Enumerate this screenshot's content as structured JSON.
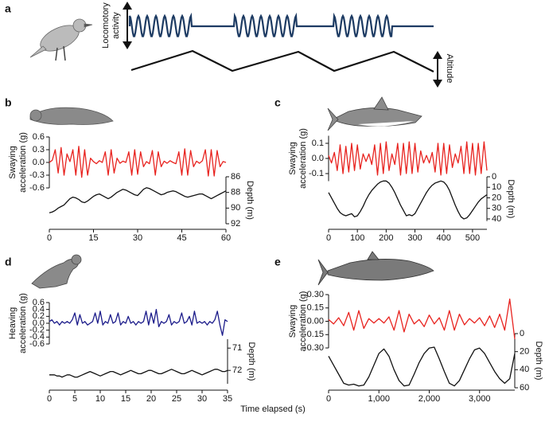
{
  "schematic": {
    "label": "a",
    "activity_label": [
      "Locomotory",
      "activity"
    ],
    "altitude_label": "Altitude"
  },
  "footer": {
    "x_label": "Time elapsed (s)"
  },
  "chart_data": [
    {
      "type": "line",
      "label": "b",
      "y_label": [
        "Swaying",
        "acceleration (g)"
      ],
      "y2_label": "Depth (m)",
      "x": [
        0,
        1,
        2,
        3,
        4,
        5,
        6,
        7,
        8,
        9,
        10,
        11,
        12,
        13,
        14,
        15,
        16,
        17,
        18,
        19,
        20,
        21,
        22,
        23,
        24,
        25,
        26,
        27,
        28,
        29,
        30,
        31,
        32,
        33,
        34,
        35,
        36,
        37,
        38,
        39,
        40,
        41,
        42,
        43,
        44,
        45,
        46,
        47,
        48,
        49,
        50,
        51,
        52,
        53,
        54,
        55,
        56,
        57,
        58,
        59,
        60
      ],
      "xlim": [
        0,
        60
      ],
      "xticks": [
        0,
        15,
        30,
        45,
        60
      ],
      "ylim": [
        -0.6,
        0.6
      ],
      "yticks": [
        0.6,
        0.3,
        {
          "value": 0,
          "label": "0.0"
        },
        -0.3,
        -0.6
      ],
      "y2lim": [
        86,
        92
      ],
      "y2_inverted": true,
      "y2ticks": [
        86,
        88,
        90,
        92
      ],
      "series": [
        {
          "name": "Swaying acceleration",
          "color": "#e8231f",
          "values": [
            0,
            0.05,
            0.3,
            -0.25,
            0.35,
            -0.3,
            0.2,
            0.02,
            0.3,
            -0.3,
            0.38,
            -0.35,
            0.3,
            -0.3,
            0.1,
            0.02,
            -0.03,
            0.04,
            0,
            0.25,
            -0.3,
            0.3,
            -0.25,
            0.1,
            -0.02,
            0.03,
            0,
            0.25,
            -0.3,
            0.3,
            -0.28,
            0.25,
            -0.1,
            0.02,
            -0.03,
            0.28,
            -0.3,
            0.25,
            -0.1,
            0.03,
            -0.02,
            0.04,
            0,
            -0.03,
            0.25,
            -0.3,
            0.32,
            -0.3,
            0.28,
            -0.1,
            0.03,
            -0.02,
            0.04,
            0.3,
            -0.32,
            0.3,
            -0.32,
            0.28,
            -0.1,
            0.02,
            0
          ]
        },
        {
          "name": "Depth",
          "color": "#111111",
          "axis": "y2",
          "values": [
            90.6,
            90.5,
            90.3,
            90.0,
            89.8,
            89.6,
            89.2,
            88.8,
            88.6,
            88.7,
            88.9,
            89.2,
            89.3,
            89.1,
            88.8,
            88.5,
            88.3,
            88.2,
            88.4,
            88.6,
            88.8,
            88.6,
            88.3,
            88.0,
            87.8,
            87.6,
            87.7,
            87.9,
            88.1,
            88.3,
            88.4,
            88.0,
            87.6,
            87.4,
            87.5,
            87.7,
            87.9,
            88.1,
            88.3,
            88.2,
            88.0,
            87.9,
            87.8,
            87.9,
            88.1,
            88.3,
            88.5,
            88.6,
            88.5,
            88.4,
            88.3,
            88.2,
            88.2,
            88.4,
            88.6,
            88.8,
            88.6,
            88.4,
            88.2,
            88.0,
            87.8
          ]
        }
      ]
    },
    {
      "type": "line",
      "label": "c",
      "y_label": [
        "Swaying",
        "acceleration (g)"
      ],
      "y2_label": "Depth (m)",
      "x": [
        0,
        10,
        20,
        30,
        40,
        50,
        60,
        70,
        80,
        90,
        100,
        110,
        120,
        130,
        140,
        150,
        160,
        170,
        180,
        190,
        200,
        210,
        220,
        230,
        240,
        250,
        260,
        270,
        280,
        290,
        300,
        310,
        320,
        330,
        340,
        350,
        360,
        370,
        380,
        390,
        400,
        410,
        420,
        430,
        440,
        450,
        460,
        470,
        480,
        490,
        500,
        510,
        520,
        530,
        540,
        550
      ],
      "xlim": [
        0,
        550
      ],
      "xticks": [
        0,
        100,
        200,
        300,
        400,
        500
      ],
      "ylim": [
        -0.15,
        0.15
      ],
      "yticks": [
        0.1,
        {
          "value": 0,
          "label": "0.0"
        },
        -0.1
      ],
      "y2lim": [
        0,
        42
      ],
      "y2_inverted": true,
      "y2ticks": [
        0,
        10,
        20,
        30,
        40
      ],
      "series": [
        {
          "name": "Swaying acceleration",
          "color": "#e8231f",
          "values": [
            0.02,
            -0.03,
            0.04,
            -0.08,
            0.09,
            -0.1,
            0.08,
            -0.09,
            0.1,
            -0.08,
            0.09,
            -0.07,
            0.03,
            -0.02,
            0.03,
            -0.04,
            0.09,
            -0.11,
            0.1,
            -0.1,
            0.11,
            -0.08,
            0.03,
            -0.04,
            0.1,
            -0.11,
            0.1,
            -0.1,
            0.11,
            -0.1,
            0.1,
            -0.09,
            0.05,
            -0.03,
            0.02,
            -0.03,
            0.04,
            -0.09,
            0.1,
            -0.11,
            0.1,
            -0.1,
            0.09,
            -0.06,
            0.03,
            -0.03,
            0.08,
            -0.1,
            0.11,
            -0.1,
            0.1,
            -0.11,
            0.1,
            -0.1,
            0.11,
            -0.08
          ]
        },
        {
          "name": "Depth",
          "color": "#111111",
          "axis": "y2",
          "values": [
            15,
            20,
            25,
            30,
            34,
            36,
            37,
            36,
            35,
            38,
            37,
            33,
            28,
            22,
            17,
            13,
            10,
            7,
            5,
            4,
            4,
            6,
            10,
            15,
            21,
            27,
            32,
            37,
            36,
            37,
            35,
            30,
            25,
            20,
            15,
            11,
            8,
            6,
            5,
            4,
            5,
            8,
            13,
            20,
            27,
            33,
            38,
            40,
            39,
            36,
            32,
            28,
            24,
            21,
            19,
            17
          ]
        }
      ]
    },
    {
      "type": "line",
      "label": "d",
      "y_label": [
        "Heaving",
        "acceleration (g)"
      ],
      "y2_label": "Depth (m)",
      "x": [
        0,
        0.5,
        1,
        1.5,
        2,
        2.5,
        3,
        3.5,
        4,
        4.5,
        5,
        5.5,
        6,
        6.5,
        7,
        7.5,
        8,
        8.5,
        9,
        9.5,
        10,
        10.5,
        11,
        11.5,
        12,
        12.5,
        13,
        13.5,
        14,
        14.5,
        15,
        15.5,
        16,
        16.5,
        17,
        17.5,
        18,
        18.5,
        19,
        19.5,
        20,
        20.5,
        21,
        21.5,
        22,
        22.5,
        23,
        23.5,
        24,
        24.5,
        25,
        25.5,
        26,
        26.5,
        27,
        27.5,
        28,
        28.5,
        29,
        29.5,
        30,
        30.5,
        31,
        31.5,
        32,
        32.5,
        33,
        33.5,
        34,
        34.5,
        35
      ],
      "xlim": [
        0,
        35
      ],
      "xticks": [
        0,
        5,
        10,
        15,
        20,
        25,
        30,
        35
      ],
      "ylim": [
        -0.6,
        0.6
      ],
      "yticks": [
        0.6,
        0.4,
        0.2,
        {
          "value": 0,
          "label": "0.0"
        },
        -0.2,
        -0.4,
        -0.6
      ],
      "y2lim": [
        70.6,
        72.6
      ],
      "y2_inverted": true,
      "y2ticks": [
        71,
        72
      ],
      "series": [
        {
          "name": "Heaving acceleration",
          "color": "#1b1b8a",
          "values": [
            0.05,
            0.1,
            0,
            0.05,
            -0.05,
            0.05,
            0,
            0.05,
            0,
            0.1,
            0.3,
            -0.05,
            0.25,
            0,
            0.05,
            -0.05,
            0,
            0.05,
            0.3,
            0,
            0.35,
            -0.05,
            0.05,
            0,
            0.25,
            0,
            0.05,
            0.3,
            -0.05,
            0.05,
            0,
            0.2,
            0,
            0.05,
            -0.05,
            0.05,
            0,
            0.05,
            0.35,
            -0.05,
            0.3,
            0,
            0.4,
            -0.1,
            0.05,
            0,
            0.05,
            0.25,
            -0.05,
            0.05,
            0,
            0.05,
            0.3,
            0,
            0.05,
            0.2,
            -0.05,
            0.35,
            0,
            0.05,
            0,
            0.05,
            -0.05,
            0.05,
            0,
            0.1,
            0.35,
            -0.05,
            -0.35,
            0.1,
            0.05
          ]
        },
        {
          "name": "Depth",
          "color": "#111111",
          "axis": "y2",
          "values": [
            72.2,
            72.2,
            72.2,
            72.25,
            72.25,
            72.3,
            72.25,
            72.2,
            72.2,
            72.25,
            72.3,
            72.3,
            72.25,
            72.2,
            72.15,
            72.1,
            72.05,
            72.1,
            72.15,
            72.2,
            72.25,
            72.2,
            72.15,
            72.1,
            72.05,
            72.05,
            72.1,
            72.15,
            72.2,
            72.15,
            72.1,
            72.05,
            72.0,
            72.05,
            72.1,
            72.15,
            72.15,
            72.1,
            72.05,
            72.0,
            72.0,
            72.05,
            72.1,
            72.15,
            72.15,
            72.1,
            72.05,
            72.0,
            71.95,
            72.0,
            72.05,
            72.1,
            72.15,
            72.15,
            72.1,
            72.05,
            72.0,
            72.05,
            72.1,
            72.15,
            72.2,
            72.15,
            72.1,
            72.05,
            72.0,
            71.95,
            71.95,
            72.0,
            72.05,
            72.05,
            72.0
          ]
        }
      ]
    },
    {
      "type": "line",
      "label": "e",
      "y_label": [
        "Swaying",
        "acceleration (g)"
      ],
      "y2_label": "Depth (m)",
      "x": [
        0,
        100,
        200,
        300,
        400,
        500,
        600,
        700,
        800,
        900,
        1000,
        1100,
        1200,
        1300,
        1400,
        1500,
        1600,
        1700,
        1800,
        1900,
        2000,
        2100,
        2200,
        2300,
        2400,
        2500,
        2600,
        2700,
        2800,
        2900,
        3000,
        3100,
        3200,
        3300,
        3400,
        3500,
        3600,
        3700
      ],
      "xlim": [
        0,
        3700
      ],
      "xticks": [
        0,
        {
          "value": 1000,
          "label": "1,000"
        },
        {
          "value": 2000,
          "label": "2,000"
        },
        {
          "value": 3000,
          "label": "3,000"
        }
      ],
      "ylim": [
        -0.3,
        0.3
      ],
      "yticks": [
        {
          "value": 0.3,
          "label": "0.30"
        },
        0.15,
        {
          "value": 0,
          "label": "0.00"
        },
        -0.15,
        {
          "value": -0.3,
          "label": "-0.30"
        }
      ],
      "y2lim": [
        0,
        60
      ],
      "y2_inverted": true,
      "y2ticks": [
        0,
        20,
        40,
        60
      ],
      "series": [
        {
          "name": "Swaying acceleration",
          "color": "#e8231f",
          "values": [
            0.02,
            -0.03,
            0.04,
            -0.05,
            0.1,
            -0.1,
            0.12,
            -0.08,
            0.03,
            -0.02,
            0.03,
            -0.02,
            0.05,
            -0.1,
            0.12,
            -0.12,
            0.08,
            -0.03,
            0.02,
            -0.06,
            0.07,
            -0.03,
            0.04,
            -0.1,
            0.12,
            -0.1,
            0.08,
            -0.04,
            0.03,
            -0.02,
            0.04,
            -0.05,
            0.06,
            -0.07,
            0.08,
            -0.1,
            0.25,
            -0.2
          ]
        },
        {
          "name": "Depth",
          "color": "#111111",
          "axis": "y2",
          "values": [
            25,
            35,
            45,
            55,
            57,
            56,
            58,
            57,
            48,
            35,
            22,
            17,
            25,
            40,
            52,
            58,
            57,
            45,
            32,
            22,
            16,
            15,
            28,
            42,
            55,
            58,
            52,
            40,
            28,
            18,
            16,
            22,
            32,
            42,
            50,
            55,
            50,
            22
          ]
        }
      ]
    }
  ]
}
